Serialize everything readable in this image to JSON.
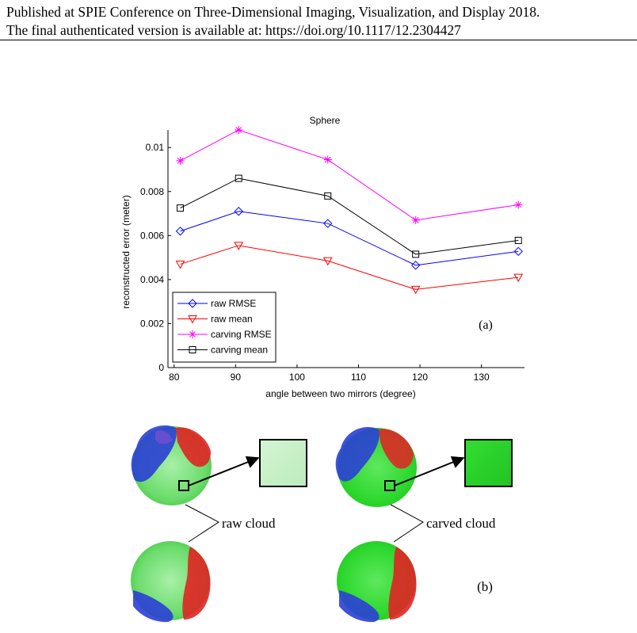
{
  "header": {
    "line1": "Published at SPIE Conference on Three-Dimensional Imaging, Visualization, and Display 2018.",
    "line2": "The final authenticated version is available at: https://doi.org/10.1117/12.2304427"
  },
  "chart_data": {
    "type": "line",
    "title": "Sphere",
    "xlabel": "angle between two mirrors (degree)",
    "ylabel": "reconstructed error (meter)",
    "xlim": [
      79,
      137
    ],
    "ylim": [
      0,
      0.0108
    ],
    "xticks": [
      80,
      90,
      100,
      110,
      120,
      130
    ],
    "yticks": [
      0,
      0.002,
      0.004,
      0.006,
      0.008,
      0.01
    ],
    "ytick_labels": [
      "0",
      "0.002",
      "0.004",
      "0.006",
      "0.008",
      "0.01"
    ],
    "x": [
      81,
      90.5,
      105,
      119.3,
      136
    ],
    "series": [
      {
        "name": "raw RMSE",
        "color": "#0000ff",
        "marker": "diamond",
        "values": [
          0.0062,
          0.0071,
          0.00655,
          0.00465,
          0.00528
        ]
      },
      {
        "name": "raw mean",
        "color": "#ff0000",
        "marker": "triangle-down",
        "values": [
          0.0047,
          0.00555,
          0.00485,
          0.00355,
          0.0041
        ]
      },
      {
        "name": "carving RMSE",
        "color": "#ff00ff",
        "marker": "asterisk",
        "values": [
          0.0094,
          0.0108,
          0.00945,
          0.0067,
          0.0074
        ]
      },
      {
        "name": "carving mean",
        "color": "#000000",
        "marker": "square",
        "values": [
          0.00725,
          0.0086,
          0.0078,
          0.00515,
          0.00578
        ]
      }
    ],
    "legend_position": "bottom-left",
    "panel_label": "(a)"
  },
  "figure_b": {
    "panel_label": "(b)",
    "left_label": "raw cloud",
    "right_label": "carved cloud"
  }
}
